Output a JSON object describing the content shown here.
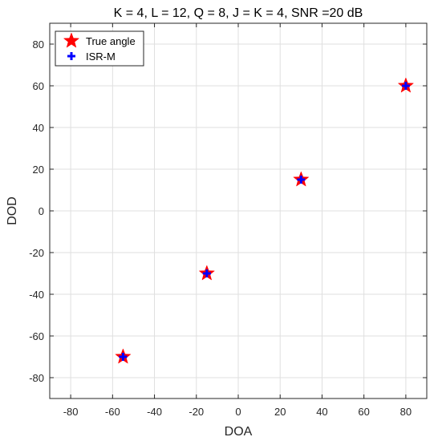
{
  "chart_data": {
    "type": "scatter",
    "title": "K = 4, L = 12, Q = 8, J = K = 4, SNR =20 dB",
    "xlabel": "DOA",
    "ylabel": "DOD",
    "xlim": [
      -90,
      90
    ],
    "ylim": [
      -90,
      90
    ],
    "xticks": [
      -80,
      -60,
      -40,
      -20,
      0,
      20,
      40,
      60,
      80
    ],
    "yticks": [
      -80,
      -60,
      -40,
      -20,
      0,
      20,
      40,
      60,
      80
    ],
    "grid": true,
    "legend_position": "top-left",
    "series": [
      {
        "name": "True angle",
        "marker": "star",
        "color": "#ff0000",
        "points": [
          {
            "x": -55,
            "y": -70
          },
          {
            "x": -15,
            "y": -30
          },
          {
            "x": 30,
            "y": 15
          },
          {
            "x": 80,
            "y": 60
          }
        ]
      },
      {
        "name": "ISR-M",
        "marker": "plus",
        "color": "#0000ff",
        "points": [
          {
            "x": -55,
            "y": -70
          },
          {
            "x": -15,
            "y": -30
          },
          {
            "x": 30,
            "y": 15
          },
          {
            "x": 80,
            "y": 60
          }
        ]
      }
    ]
  }
}
